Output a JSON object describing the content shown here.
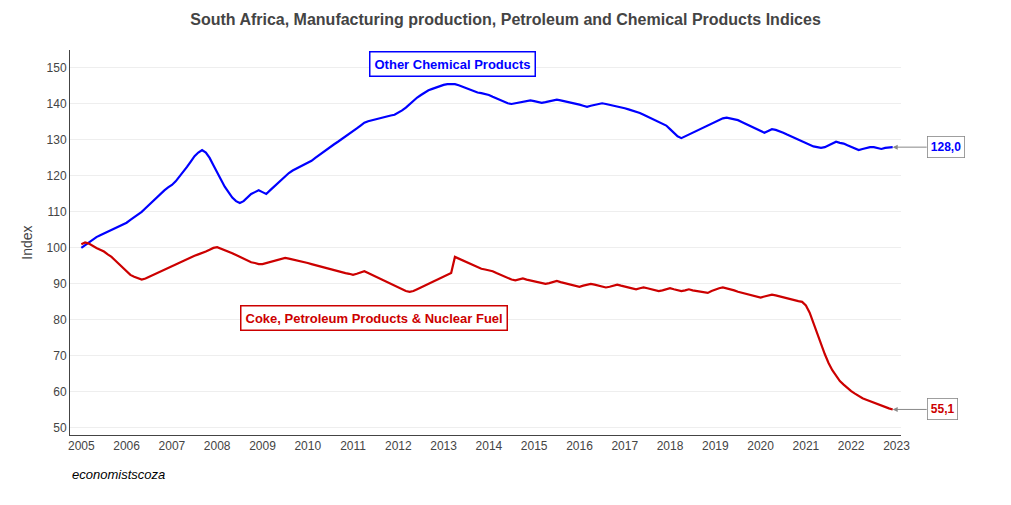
{
  "chart_data": {
    "type": "line",
    "title": "South Africa, Manufacturing production, Petroleum and Chemical Products Indices",
    "y_label": "Index",
    "annotations": [
      "economistscoza"
    ],
    "grid": true,
    "xlim": [
      2004.75,
      2023.1
    ],
    "xticks": [
      2005,
      2006,
      2007,
      2008,
      2009,
      2010,
      2011,
      2012,
      2013,
      2014,
      2015,
      2016,
      2017,
      2018,
      2019,
      2020,
      2021,
      2022,
      2023
    ],
    "ylim": [
      48,
      155
    ],
    "yticks": [
      50,
      60,
      70,
      80,
      90,
      100,
      110,
      120,
      130,
      140,
      150
    ],
    "x": [
      2005,
      2005.083333333333,
      2005.166666666667,
      2005.25,
      2005.333333333333,
      2005.416666666667,
      2005.5,
      2005.583333333333,
      2005.666666666667,
      2005.75,
      2005.833333333333,
      2005.916666666667,
      2006,
      2006.083333333333,
      2006.166666666667,
      2006.25,
      2006.333333333333,
      2006.416666666667,
      2006.5,
      2006.583333333333,
      2006.666666666667,
      2006.75,
      2006.833333333333,
      2006.916666666667,
      2007,
      2007.083333333333,
      2007.166666666667,
      2007.25,
      2007.333333333333,
      2007.416666666667,
      2007.5,
      2007.583333333333,
      2007.666666666667,
      2007.75,
      2007.833333333333,
      2007.916666666667,
      2008,
      2008.083333333333,
      2008.166666666667,
      2008.25,
      2008.333333333333,
      2008.416666666667,
      2008.5,
      2008.583333333333,
      2008.666666666667,
      2008.75,
      2008.833333333333,
      2008.916666666667,
      2009,
      2009.083333333333,
      2009.166666666667,
      2009.25,
      2009.333333333333,
      2009.416666666667,
      2009.5,
      2009.583333333333,
      2009.666666666667,
      2009.75,
      2009.833333333333,
      2009.916666666667,
      2010,
      2010.083333333333,
      2010.166666666667,
      2010.25,
      2010.333333333333,
      2010.416666666667,
      2010.5,
      2010.583333333333,
      2010.666666666667,
      2010.75,
      2010.833333333333,
      2010.916666666667,
      2011,
      2011.083333333333,
      2011.166666666667,
      2011.25,
      2011.333333333333,
      2011.416666666667,
      2011.5,
      2011.583333333333,
      2011.666666666667,
      2011.75,
      2011.833333333333,
      2011.916666666667,
      2012,
      2012.083333333333,
      2012.166666666667,
      2012.25,
      2012.333333333333,
      2012.416666666667,
      2012.5,
      2012.583333333333,
      2012.666666666667,
      2012.75,
      2012.833333333333,
      2012.916666666667,
      2013,
      2013.083333333333,
      2013.166666666667,
      2013.25,
      2013.333333333333,
      2013.416666666667,
      2013.5,
      2013.583333333333,
      2013.666666666667,
      2013.75,
      2013.833333333333,
      2013.916666666667,
      2014,
      2014.083333333333,
      2014.166666666667,
      2014.25,
      2014.333333333333,
      2014.416666666667,
      2014.5,
      2014.583333333333,
      2014.666666666667,
      2014.75,
      2014.833333333333,
      2014.916666666667,
      2015,
      2015.083333333333,
      2015.166666666667,
      2015.25,
      2015.333333333333,
      2015.416666666667,
      2015.5,
      2015.583333333333,
      2015.666666666667,
      2015.75,
      2015.833333333333,
      2015.916666666667,
      2016,
      2016.083333333333,
      2016.166666666667,
      2016.25,
      2016.333333333333,
      2016.416666666667,
      2016.5,
      2016.583333333333,
      2016.666666666667,
      2016.75,
      2016.833333333333,
      2016.916666666667,
      2017,
      2017.083333333333,
      2017.166666666667,
      2017.25,
      2017.333333333333,
      2017.416666666667,
      2017.5,
      2017.583333333333,
      2017.666666666667,
      2017.75,
      2017.833333333333,
      2017.916666666667,
      2018,
      2018.083333333333,
      2018.166666666667,
      2018.25,
      2018.333333333333,
      2018.416666666667,
      2018.5,
      2018.583333333333,
      2018.666666666667,
      2018.75,
      2018.833333333333,
      2018.916666666667,
      2019,
      2019.083333333333,
      2019.166666666667,
      2019.25,
      2019.333333333333,
      2019.416666666667,
      2019.5,
      2019.583333333333,
      2019.666666666667,
      2019.75,
      2019.833333333333,
      2019.916666666667,
      2020,
      2020.083333333333,
      2020.166666666667,
      2020.25,
      2020.333333333333,
      2020.416666666667,
      2020.5,
      2020.583333333333,
      2020.666666666667,
      2020.75,
      2020.833333333333,
      2020.916666666667,
      2021,
      2021.083333333333,
      2021.166666666667,
      2021.25,
      2021.333333333333,
      2021.416666666667,
      2021.5,
      2021.583333333333,
      2021.666666666667,
      2021.75,
      2021.833333333333,
      2021.916666666667,
      2022,
      2022.083333333333,
      2022.166666666667,
      2022.25,
      2022.333333333333,
      2022.416666666667,
      2022.5,
      2022.583333333333,
      2022.666666666667,
      2022.75,
      2022.833333333333,
      2022.916666666667
    ],
    "series": [
      {
        "name": "Other Chemical Products",
        "color": "#0000FF",
        "values": [
          100.0,
          100.8,
          101.5,
          102.2,
          103.0,
          103.5,
          104.0,
          104.5,
          105.0,
          105.5,
          106.0,
          106.5,
          107.0,
          107.8,
          108.5,
          109.2,
          110.0,
          111.0,
          112.0,
          113.2,
          114.0,
          115.0,
          116.0,
          116.8,
          117.5,
          118.5,
          119.8,
          121.0,
          122.5,
          124.0,
          125.5,
          126.5,
          127.2,
          126.5,
          125.0,
          123.0,
          121.0,
          119.0,
          117.0,
          115.5,
          114.0,
          113.0,
          112.5,
          113.0,
          114.0,
          115.0,
          115.5,
          116.0,
          115.5,
          115.0,
          116.0,
          117.0,
          118.0,
          119.0,
          120.0,
          120.8,
          121.5,
          122.0,
          122.5,
          123.0,
          123.5,
          124.2,
          125.0,
          125.8,
          126.5,
          127.2,
          128.0,
          128.8,
          129.5,
          130.2,
          131.0,
          131.8,
          132.5,
          133.2,
          134.0,
          134.8,
          135.2,
          135.5,
          135.8,
          136.0,
          136.2,
          136.5,
          136.8,
          137.0,
          137.5,
          138.2,
          139.0,
          140.0,
          141.0,
          141.8,
          142.5,
          143.2,
          143.8,
          144.2,
          144.6,
          145.0,
          145.3,
          145.5,
          145.6,
          145.5,
          145.2,
          144.8,
          144.3,
          143.8,
          143.5,
          143.2,
          143.0,
          142.8,
          142.5,
          142.0,
          141.5,
          141.0,
          140.5,
          140.2,
          140.0,
          140.2,
          140.5,
          140.8,
          141.0,
          141.0,
          140.8,
          140.5,
          140.3,
          140.5,
          140.8,
          141.0,
          141.2,
          141.0,
          140.8,
          140.5,
          140.3,
          140.0,
          139.8,
          139.5,
          139.2,
          139.5,
          139.8,
          140.0,
          140.2,
          140.0,
          139.8,
          139.5,
          139.2,
          139.0,
          138.8,
          138.5,
          138.2,
          138.0,
          137.5,
          137.0,
          136.5,
          136.0,
          135.5,
          135.0,
          134.5,
          134.0,
          133.0,
          132.0,
          131.0,
          130.5,
          131.0,
          131.5,
          132.0,
          132.5,
          133.0,
          133.5,
          134.0,
          134.5,
          135.0,
          135.5,
          136.0,
          136.2,
          136.0,
          135.8,
          135.5,
          135.0,
          134.5,
          134.0,
          133.5,
          133.0,
          132.5,
          132.0,
          132.5,
          133.0,
          132.8,
          132.5,
          132.0,
          131.5,
          131.0,
          130.5,
          130.0,
          129.5,
          129.0,
          128.5,
          128.2,
          128.0,
          127.8,
          128.0,
          128.5,
          129.0,
          129.5,
          129.2,
          129.0,
          128.5,
          128.0,
          127.5,
          127.2,
          127.5,
          127.8,
          128.0,
          128.0,
          127.8,
          127.5,
          127.8,
          128.0,
          128.0
        ],
        "value_labels": [
          null,
          null,
          null,
          null,
          null,
          null,
          null,
          null,
          null,
          null,
          null,
          null,
          null,
          null,
          null,
          null,
          null,
          null,
          null,
          null,
          null,
          null,
          null,
          null,
          null,
          null,
          null,
          null,
          null,
          null,
          null,
          null,
          null,
          null,
          null,
          null,
          null,
          null,
          null,
          null,
          null,
          null,
          null,
          null,
          null,
          null,
          null,
          null,
          null,
          null,
          null,
          null,
          null,
          null,
          null,
          null,
          null,
          null,
          null,
          null,
          null,
          null,
          null,
          null,
          null,
          null,
          null,
          null,
          null,
          null,
          null,
          null,
          null,
          null,
          null,
          null,
          null,
          null,
          null,
          null,
          null,
          null,
          null,
          null,
          null,
          null,
          null,
          null,
          null,
          null,
          null,
          null,
          null,
          null,
          null,
          null,
          null,
          null,
          null,
          null,
          null,
          null,
          null,
          null,
          null,
          null,
          null,
          null,
          null,
          null,
          null,
          null,
          null,
          null,
          null,
          null,
          null,
          null,
          null,
          null,
          null,
          null,
          null,
          null,
          null,
          null,
          null,
          null,
          null,
          null,
          null,
          null,
          null,
          null,
          null,
          null,
          null,
          null,
          null,
          null,
          null,
          null,
          null,
          null,
          null,
          null,
          null,
          null,
          null,
          null,
          null,
          null,
          null,
          null,
          null,
          null,
          null,
          null,
          null,
          null,
          null,
          null,
          null,
          null,
          null,
          null,
          null,
          null,
          null,
          null,
          null,
          null,
          null,
          null,
          null,
          null,
          null,
          null,
          null,
          null,
          null,
          null,
          null,
          null,
          null,
          null,
          null,
          null,
          null,
          null,
          null,
          null,
          null,
          null,
          null,
          null,
          null,
          null,
          null,
          null,
          null,
          null,
          null,
          null,
          null,
          null,
          null,
          null,
          null,
          null,
          null,
          null,
          null,
          null,
          null,
          "128,0"
        ]
      },
      {
        "name": "Coke, Petroleum Products & Nuclear Fuel",
        "color": "#CC0000",
        "values": [
          101.0,
          101.5,
          101.2,
          100.5,
          100.0,
          99.5,
          99.0,
          98.2,
          97.5,
          96.5,
          95.5,
          94.5,
          93.5,
          92.5,
          92.0,
          91.5,
          91.2,
          91.5,
          92.0,
          92.5,
          93.0,
          93.5,
          94.0,
          94.5,
          95.0,
          95.5,
          96.0,
          96.5,
          97.0,
          97.5,
          97.8,
          98.2,
          98.5,
          99.0,
          99.5,
          100.0,
          100.2,
          99.8,
          99.5,
          99.0,
          98.5,
          98.0,
          97.5,
          97.0,
          96.5,
          96.0,
          95.8,
          95.5,
          95.5,
          95.8,
          96.2,
          96.5,
          96.8,
          97.0,
          97.2,
          97.0,
          96.8,
          96.5,
          96.2,
          96.0,
          95.8,
          95.5,
          95.2,
          95.0,
          94.8,
          94.5,
          94.0,
          93.8,
          93.5,
          93.2,
          93.0,
          92.8,
          92.5,
          92.8,
          93.2,
          93.5,
          93.0,
          92.5,
          92.0,
          91.5,
          91.0,
          90.5,
          90.0,
          89.5,
          89.0,
          88.5,
          88.0,
          87.8,
          88.0,
          88.5,
          89.0,
          89.5,
          90.0,
          90.5,
          91.0,
          91.5,
          92.0,
          92.5,
          93.0,
          97.5,
          97.0,
          96.5,
          96.0,
          95.5,
          95.0,
          94.5,
          94.2,
          94.0,
          93.8,
          93.5,
          93.0,
          92.5,
          92.0,
          91.5,
          91.2,
          91.0,
          91.2,
          91.5,
          91.2,
          91.0,
          90.8,
          90.5,
          90.2,
          90.0,
          90.2,
          90.5,
          90.8,
          90.5,
          90.2,
          90.0,
          89.8,
          89.5,
          89.2,
          89.5,
          89.8,
          90.0,
          89.8,
          89.5,
          89.2,
          89.0,
          89.2,
          89.5,
          89.8,
          89.5,
          89.2,
          89.0,
          88.8,
          88.5,
          88.8,
          89.0,
          88.8,
          88.5,
          88.2,
          88.0,
          88.2,
          88.5,
          88.8,
          88.5,
          88.2,
          88.0,
          88.2,
          88.5,
          88.2,
          88.0,
          87.8,
          87.5,
          87.5,
          88.0,
          88.5,
          88.8,
          89.0,
          88.8,
          88.5,
          88.2,
          87.8,
          87.5,
          87.2,
          87.0,
          86.8,
          86.5,
          86.2,
          86.5,
          86.8,
          87.0,
          86.8,
          86.5,
          86.2,
          86.0,
          85.8,
          85.5,
          85.2,
          85.0,
          84.0,
          82.0,
          79.0,
          76.0,
          73.0,
          70.5,
          68.0,
          66.0,
          64.5,
          63.0,
          62.0,
          61.0,
          60.2,
          59.5,
          58.8,
          58.2,
          57.8,
          57.4,
          57.0,
          56.5,
          56.0,
          55.7,
          55.4,
          55.1
        ],
        "value_labels": [
          null,
          null,
          null,
          null,
          null,
          null,
          null,
          null,
          null,
          null,
          null,
          null,
          null,
          null,
          null,
          null,
          null,
          null,
          null,
          null,
          null,
          null,
          null,
          null,
          null,
          null,
          null,
          null,
          null,
          null,
          null,
          null,
          null,
          null,
          null,
          null,
          null,
          null,
          null,
          null,
          null,
          null,
          null,
          null,
          null,
          null,
          null,
          null,
          null,
          null,
          null,
          null,
          null,
          null,
          null,
          null,
          null,
          null,
          null,
          null,
          null,
          null,
          null,
          null,
          null,
          null,
          null,
          null,
          null,
          null,
          null,
          null,
          null,
          null,
          null,
          null,
          null,
          null,
          null,
          null,
          null,
          null,
          null,
          null,
          null,
          null,
          null,
          null,
          null,
          null,
          null,
          null,
          null,
          null,
          null,
          null,
          null,
          null,
          null,
          null,
          null,
          null,
          null,
          null,
          null,
          null,
          null,
          null,
          null,
          null,
          null,
          null,
          null,
          null,
          null,
          null,
          null,
          null,
          null,
          null,
          null,
          null,
          null,
          null,
          null,
          null,
          null,
          null,
          null,
          null,
          null,
          null,
          null,
          null,
          null,
          null,
          null,
          null,
          null,
          null,
          null,
          null,
          null,
          null,
          null,
          null,
          null,
          null,
          null,
          null,
          null,
          null,
          null,
          null,
          null,
          null,
          null,
          null,
          null,
          null,
          null,
          null,
          null,
          null,
          null,
          null,
          null,
          null,
          null,
          null,
          null,
          null,
          null,
          null,
          null,
          null,
          null,
          null,
          null,
          null,
          null,
          null,
          null,
          null,
          null,
          null,
          null,
          null,
          null,
          null,
          null,
          null,
          null,
          null,
          null,
          null,
          null,
          null,
          null,
          null,
          null,
          null,
          null,
          null,
          null,
          null,
          null,
          null,
          null,
          null,
          null,
          null,
          null,
          null,
          null,
          "55,1"
        ]
      }
    ]
  }
}
